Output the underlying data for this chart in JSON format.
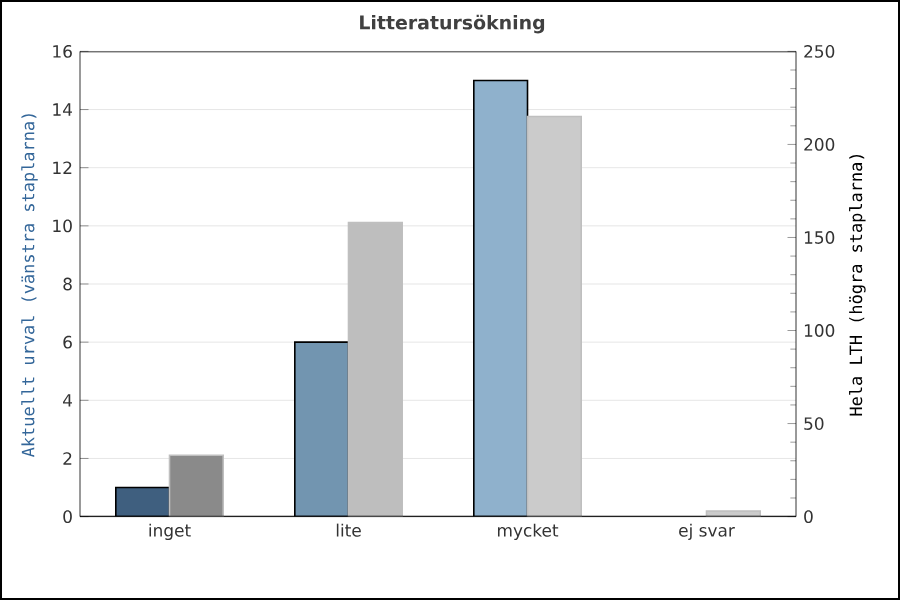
{
  "chart_data": {
    "type": "bar",
    "title": "Litteratursökning",
    "categories": [
      "inget",
      "lite",
      "mycket",
      "ej svar"
    ],
    "ylabel": "Aktuellt urval (vänstra staplarna)",
    "y2label": "Hela LTH (högra staplarna)",
    "series": [
      {
        "colors": [
          "#3f5f7f",
          "#7295b0",
          "#8fb1cc",
          "#8fb1cc"
        ],
        "values": [
          1,
          6,
          15,
          null
        ]
      },
      {
        "axis": "y2",
        "colors": [
          "#8a8a8a",
          "#bebebe",
          "#cbcbcb",
          "#cbcbcb"
        ],
        "values": [
          33,
          158,
          215,
          3
        ]
      }
    ],
    "ylim": [
      0,
      16
    ],
    "yticks": [
      0,
      2,
      4,
      6,
      8,
      10,
      12,
      14,
      16
    ],
    "y2lim": [
      0,
      250
    ],
    "y2ticks": [
      0,
      50,
      100,
      150,
      200,
      250
    ],
    "grid": "y"
  }
}
